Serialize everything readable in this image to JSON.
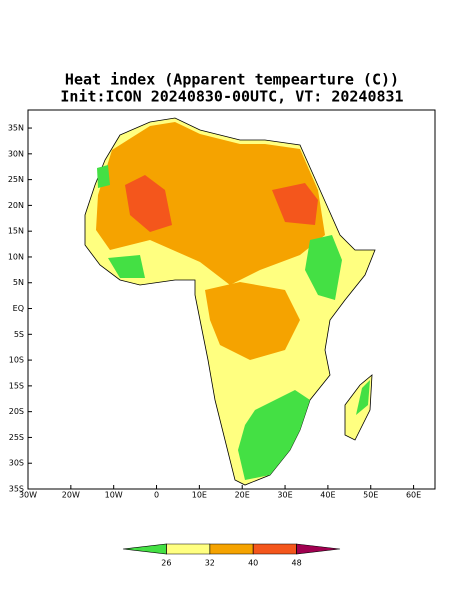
{
  "title": [
    "Heat index (Apparent tempearture (C))",
    "Init:ICON 20240830-00UTC, VT: 20240831"
  ],
  "map": {
    "xlim": [
      -30,
      65
    ],
    "ylim": [
      -35,
      38.5
    ],
    "xticks": [
      {
        "value": -30,
        "label": "30W"
      },
      {
        "value": -20,
        "label": "20W"
      },
      {
        "value": -10,
        "label": "10W"
      },
      0,
      {
        "value": 10,
        "label": "10E"
      },
      {
        "value": 20,
        "label": "20E"
      },
      {
        "value": 30,
        "label": "30E"
      },
      {
        "value": 40,
        "label": "40E"
      },
      {
        "value": 50,
        "label": "50E"
      },
      {
        "value": 60,
        "label": "60E"
      }
    ],
    "yticks": [
      {
        "value": 35,
        "label": "35N"
      },
      {
        "value": 30,
        "label": "30N"
      },
      {
        "value": 25,
        "label": "25N"
      },
      {
        "value": 20,
        "label": "20N"
      },
      {
        "value": 15,
        "label": "15N"
      },
      {
        "value": 10,
        "label": "10N"
      },
      {
        "value": 5,
        "label": "5N"
      },
      {
        "value": 0,
        "label": "EQ"
      },
      {
        "value": -5,
        "label": "5S"
      },
      {
        "value": -10,
        "label": "10S"
      },
      {
        "value": -15,
        "label": "15S"
      },
      {
        "value": -20,
        "label": "20S"
      },
      {
        "value": -25,
        "label": "25S"
      },
      {
        "value": -30,
        "label": "30S"
      },
      {
        "value": -35,
        "label": "35S"
      }
    ]
  },
  "colorbar": {
    "ticks": [
      26,
      32,
      40,
      48
    ],
    "colors": [
      "#44e044",
      "#ffff80",
      "#f5a300",
      "#f4561c",
      "#a00050"
    ]
  }
}
